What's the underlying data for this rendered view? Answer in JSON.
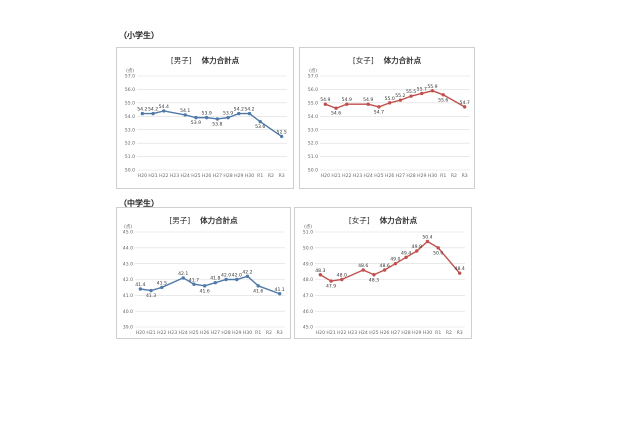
{
  "sections": [
    {
      "label": "（小学生）"
    },
    {
      "label": "（中学生）"
    }
  ],
  "panels": [
    {
      "gender": "[男子]",
      "metric": "体力合計点"
    },
    {
      "gender": "[女子]",
      "metric": "体力合計点"
    },
    {
      "gender": "[男子]",
      "metric": "体力合計点"
    },
    {
      "gender": "[女子]",
      "metric": "体力合計点"
    }
  ],
  "colors": {
    "blue": "#4f7aa8",
    "red": "#c0504d",
    "grid": "#dcdcdc"
  },
  "chart_data": [
    {
      "type": "line",
      "title": "体力合計点",
      "subtitle": "[男子]",
      "unit_label": "(点)",
      "categories": [
        "H20",
        "H21",
        "H22",
        "H23",
        "H24",
        "H25",
        "H26",
        "H27",
        "H28",
        "H29",
        "H30",
        "R1",
        "R2",
        "R3"
      ],
      "values": [
        54.2,
        54.2,
        54.4,
        null,
        54.1,
        53.9,
        53.9,
        53.8,
        53.9,
        54.2,
        54.2,
        53.6,
        null,
        52.5
      ],
      "data_labels": [
        "54.2",
        "54.2",
        "54.4",
        "",
        "54.1",
        "53.9",
        "53.9",
        "53.8",
        "53.9",
        "54.2",
        "54.2",
        "53.6",
        "",
        "52.5"
      ],
      "ylim": [
        50,
        57
      ],
      "yticks": [
        "50.0",
        "51.0",
        "52.0",
        "53.0",
        "54.0",
        "55.0",
        "56.0",
        "57.0"
      ],
      "color": "#4f7aa8",
      "grid": true
    },
    {
      "type": "line",
      "title": "体力合計点",
      "subtitle": "[女子]",
      "unit_label": "(点)",
      "categories": [
        "H20",
        "H21",
        "H22",
        "H23",
        "H24",
        "H25",
        "H26",
        "H27",
        "H28",
        "H29",
        "H30",
        "R1",
        "R2",
        "R3"
      ],
      "values": [
        54.9,
        54.6,
        54.9,
        null,
        54.9,
        54.7,
        55.0,
        55.2,
        55.5,
        55.7,
        55.9,
        55.6,
        null,
        54.7
      ],
      "data_labels": [
        "54.9",
        "54.6",
        "54.9",
        "",
        "54.9",
        "54.7",
        "55.0",
        "55.2",
        "55.5",
        "55.7",
        "55.9",
        "55.6",
        "",
        "54.7"
      ],
      "ylim": [
        50,
        57
      ],
      "yticks": [
        "50.0",
        "51.0",
        "52.0",
        "53.0",
        "54.0",
        "55.0",
        "56.0",
        "57.0"
      ],
      "color": "#c0504d",
      "grid": true
    },
    {
      "type": "line",
      "title": "体力合計点",
      "subtitle": "[男子]",
      "unit_label": "(点)",
      "categories": [
        "H20",
        "H21",
        "H22",
        "H23",
        "H24",
        "H25",
        "H26",
        "H27",
        "H28",
        "H29",
        "H30",
        "R1",
        "R2",
        "R3"
      ],
      "values": [
        41.4,
        41.3,
        41.5,
        null,
        42.1,
        41.7,
        41.6,
        41.8,
        42.0,
        42.0,
        42.2,
        41.6,
        null,
        41.1
      ],
      "data_labels": [
        "41.4",
        "41.3",
        "41.5",
        "",
        "42.1",
        "41.7",
        "41.6",
        "41.8",
        "42.0",
        "42.0",
        "42.2",
        "41.6",
        "",
        "41.1"
      ],
      "ylim": [
        39,
        45
      ],
      "yticks": [
        "39.0",
        "40.0",
        "41.0",
        "42.0",
        "43.0",
        "44.0",
        "45.0"
      ],
      "color": "#4f7aa8",
      "grid": true
    },
    {
      "type": "line",
      "title": "体力合計点",
      "subtitle": "[女子]",
      "unit_label": "(点)",
      "categories": [
        "H20",
        "H21",
        "H22",
        "H23",
        "H24",
        "H25",
        "H26",
        "H27",
        "H28",
        "H29",
        "H30",
        "R1",
        "R2",
        "R3"
      ],
      "values": [
        48.3,
        47.9,
        48.0,
        null,
        48.6,
        48.3,
        48.6,
        49.0,
        49.4,
        49.8,
        50.4,
        50.0,
        null,
        48.4
      ],
      "data_labels": [
        "48.3",
        "47.9",
        "48.0",
        "",
        "48.6",
        "48.3",
        "48.6",
        "49.0",
        "49.4",
        "49.8",
        "50.4",
        "50.0",
        "",
        "48.4"
      ],
      "ylim": [
        45,
        51
      ],
      "yticks": [
        "45.0",
        "46.0",
        "47.0",
        "48.0",
        "49.0",
        "50.0",
        "51.0"
      ],
      "color": "#c0504d",
      "grid": true
    }
  ]
}
